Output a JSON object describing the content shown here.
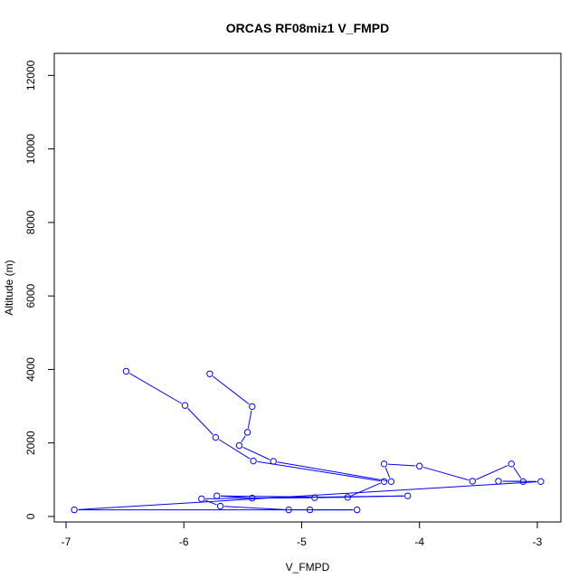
{
  "chart_data": {
    "type": "line",
    "title": "ORCAS RF08miz1 V_FMPD",
    "xlabel": "V_FMPD",
    "ylabel": "Altitude (m)",
    "xlim": [
      -7.1,
      -2.8
    ],
    "ylim": [
      -150,
      12600
    ],
    "x_ticks": [
      -7,
      -6,
      -5,
      -4,
      -3
    ],
    "y_ticks": [
      0,
      2000,
      4000,
      6000,
      8000,
      10000,
      12000
    ],
    "grid": false,
    "marker": "open-circle",
    "series": [
      {
        "color": "#0000ff",
        "x": [
          -5.78,
          -5.42,
          -5.46,
          -5.53,
          -5.24,
          -4.24,
          -4.3,
          -4.0,
          -3.55,
          -3.22,
          -3.12,
          -3.33,
          -2.97,
          -6.93,
          -4.53,
          -4.93,
          -5.11,
          -5.69,
          -5.85,
          -4.1,
          -4.89,
          -5.42,
          -5.72,
          -4.61,
          -4.3,
          -5.41,
          -5.73,
          -5.99,
          -6.49
        ],
        "y": [
          3880,
          2990,
          2290,
          1930,
          1500,
          950,
          1430,
          1370,
          960,
          1430,
          950,
          960,
          950,
          180,
          180,
          180,
          180,
          280,
          480,
          560,
          510,
          500,
          560,
          520,
          950,
          1510,
          2150,
          3020,
          3950
        ]
      }
    ]
  }
}
